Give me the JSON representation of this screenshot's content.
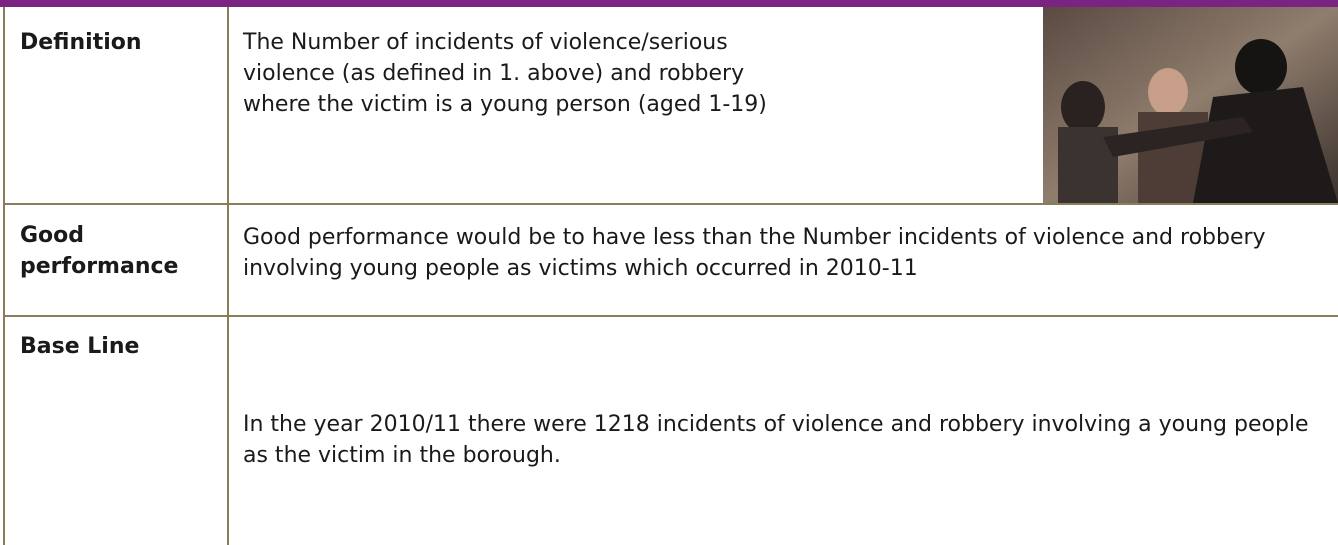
{
  "table": {
    "rows": [
      [
        "Definition",
        "The Number of incidents of violence/serious violence (as defined in 1. above) and robbery where the victim is a young person (aged 1-19)"
      ],
      [
        "Good performance",
        "Good performance would be to have less than the Number incidents of violence and robbery involving young people as victims which occurred in 2010-11"
      ],
      [
        "Base Line",
        "In the year 2010/11 there were 1218 incidents of violence and robbery involving a young people as the victim in the borough."
      ]
    ]
  }
}
